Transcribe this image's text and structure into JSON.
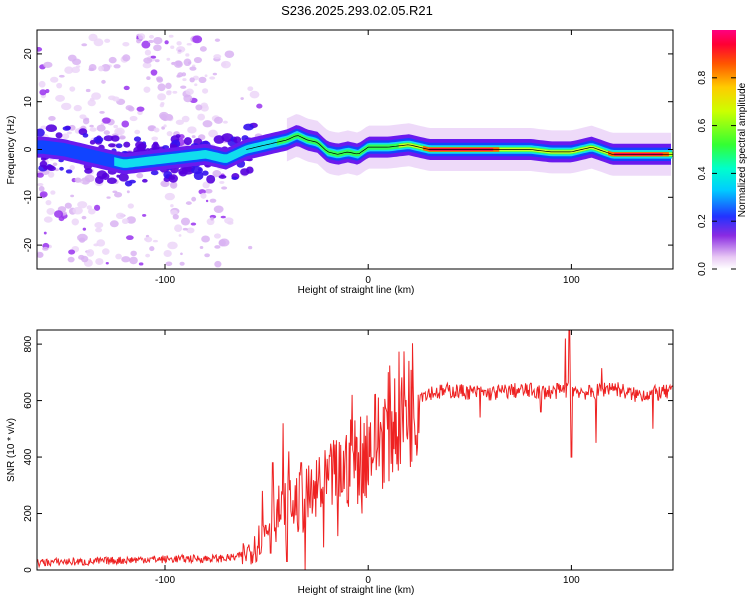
{
  "title": "S236.2025.293.02.05.R21",
  "chart_data": [
    {
      "type": "heatmap",
      "name": "spectrogram",
      "xlabel": "Height of straight line (km)",
      "ylabel": "Frequency (Hz)",
      "xlim": [
        -163,
        150
      ],
      "ylim": [
        -25,
        25
      ],
      "xticks": [
        -100,
        0,
        100
      ],
      "yticks": [
        -20,
        -10,
        0,
        10,
        20
      ],
      "grid": false,
      "ridge": {
        "x": [
          -160,
          -150,
          -140,
          -130,
          -120,
          -110,
          -100,
          -90,
          -80,
          -70,
          -60,
          -50,
          -45,
          -40,
          -35,
          -30,
          -25,
          -20,
          -15,
          -10,
          -5,
          0,
          5,
          10,
          20,
          30,
          40,
          60,
          80,
          90,
          100,
          105,
          110,
          120,
          130,
          140,
          150
        ],
        "y": [
          0.5,
          0,
          -1,
          -2,
          -3,
          -2.5,
          -2,
          -1.5,
          -1,
          -2,
          0,
          1,
          1.5,
          2,
          3,
          2,
          1.5,
          -0.5,
          -1,
          -0.5,
          -1,
          0.5,
          0.5,
          0.5,
          1,
          0,
          0,
          0,
          0,
          -0.5,
          -0.5,
          0,
          0.5,
          -1,
          -1,
          -1,
          -1
        ]
      },
      "strong_band": [
        [
          27,
          65
        ],
        [
          118,
          148
        ]
      ],
      "colorbar": {
        "label": "Normalized spectral amplitude",
        "ticks": [
          "0.0",
          "0.2",
          "0.4",
          "0.6",
          "0.8"
        ],
        "tick_values": [
          0.0,
          0.2,
          0.4,
          0.6,
          0.8
        ],
        "range": [
          0,
          1
        ],
        "colormap": "rainbow"
      }
    },
    {
      "type": "line",
      "name": "snr",
      "xlabel": "Height of straight line (km)",
      "ylabel": "SNR (10 * v/v)",
      "xlim": [
        -163,
        150
      ],
      "ylim": [
        0,
        850
      ],
      "xticks": [
        -100,
        0,
        100
      ],
      "yticks": [
        0,
        200,
        400,
        600,
        800
      ],
      "color": "#ee2222",
      "grid": false,
      "x": [
        -163,
        -150,
        -140,
        -130,
        -120,
        -110,
        -100,
        -90,
        -80,
        -70,
        -65,
        -60,
        -55,
        -50,
        -45,
        -40,
        -35,
        -30,
        -25,
        -20,
        -15,
        -10,
        -5,
        0,
        5,
        10,
        15,
        20,
        25,
        30,
        35,
        40,
        50,
        60,
        70,
        80,
        90,
        100,
        110,
        120,
        130,
        140,
        150
      ],
      "y": [
        25,
        30,
        28,
        32,
        35,
        38,
        38,
        40,
        40,
        42,
        45,
        60,
        90,
        150,
        200,
        220,
        230,
        250,
        270,
        300,
        330,
        370,
        400,
        440,
        470,
        510,
        550,
        590,
        620,
        630,
        630,
        635,
        630,
        625,
        635,
        635,
        630,
        640,
        625,
        650,
        620,
        625,
        630
      ],
      "spikes": [
        {
          "x": -56,
          "y": 120
        },
        {
          "x": -52,
          "y": 280
        },
        {
          "x": -47,
          "y": 380
        },
        {
          "x": -42,
          "y": 520
        },
        {
          "x": -39,
          "y": 420
        },
        {
          "x": -36,
          "y": 300
        },
        {
          "x": -33,
          "y": 380
        },
        {
          "x": -24,
          "y": 400
        },
        {
          "x": -17,
          "y": 460
        },
        {
          "x": -8,
          "y": 620
        },
        {
          "x": 97,
          "y": 820
        },
        {
          "x": 99,
          "y": 860
        },
        {
          "x": 115,
          "y": 715
        }
      ],
      "dips": [
        {
          "x": -48,
          "y": 60
        },
        {
          "x": -40,
          "y": 30
        },
        {
          "x": -31,
          "y": 0
        },
        {
          "x": -22,
          "y": 80
        },
        {
          "x": -15,
          "y": 120
        },
        {
          "x": -3,
          "y": 200
        },
        {
          "x": 55,
          "y": 540
        },
        {
          "x": 85,
          "y": 560
        },
        {
          "x": 100,
          "y": 400
        },
        {
          "x": 112,
          "y": 450
        },
        {
          "x": 140,
          "y": 500
        }
      ]
    }
  ]
}
